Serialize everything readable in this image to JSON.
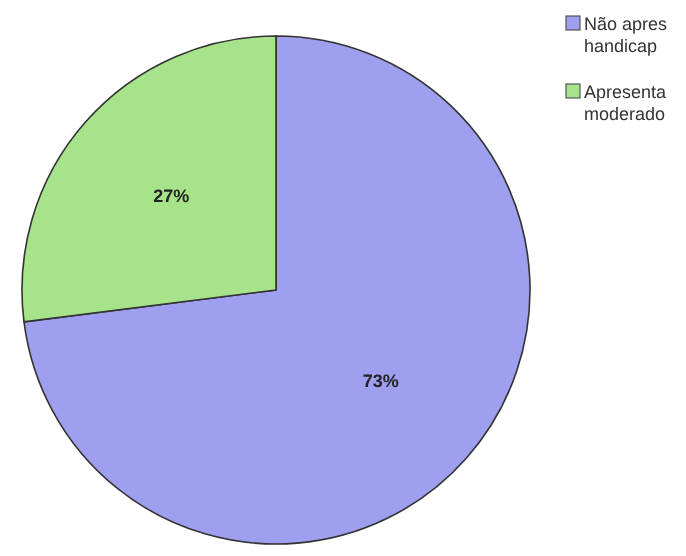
{
  "chart_data": {
    "type": "pie",
    "categories": [
      "Não apres handicap",
      "Apresenta moderado"
    ],
    "values": [
      73,
      27
    ],
    "colors": [
      "#9f9ff0",
      "#a6e38b"
    ],
    "value_labels": [
      "73%",
      "27%"
    ],
    "legend": "top right"
  }
}
